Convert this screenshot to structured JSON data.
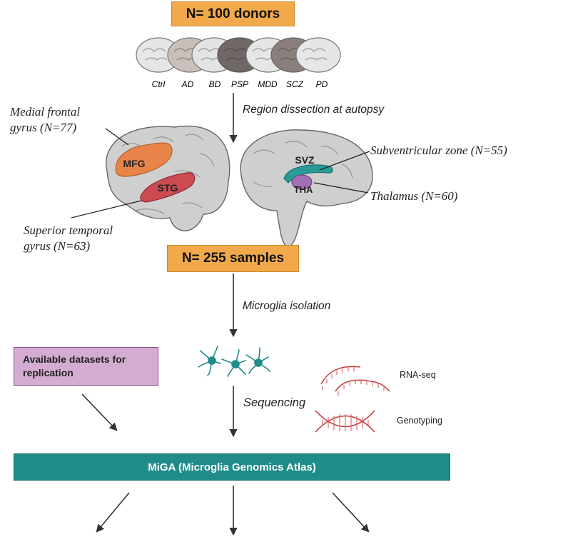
{
  "boxes": {
    "donors": "N= 100 donors",
    "samples": "N= 255 samples",
    "replication": "Available datasets for replication",
    "miga": "MiGA (Microglia Genomics Atlas)"
  },
  "donor_groups": [
    "Ctrl",
    "AD",
    "BD",
    "PSP",
    "MDD",
    "SCZ",
    "PD"
  ],
  "steps": {
    "dissection": "Region dissection at autopsy",
    "isolation": "Microglia isolation",
    "sequencing": "Sequencing"
  },
  "regions": {
    "mfg_abbr": "MFG",
    "stg_abbr": "STG",
    "svz_abbr": "SVZ",
    "tha_abbr": "THA",
    "mfg_line1": "Medial frontal",
    "mfg_line2": "gyrus (N=77)",
    "stg_line1": "Superior temporal",
    "stg_line2": "gyrus (N=63)",
    "svz_full": "Subventricular zone (N=55)",
    "tha_full": "Thalamus (N=60)"
  },
  "assays": {
    "rna": "RNA-seq",
    "geno": "Genotyping"
  },
  "colors": {
    "orange": "#f2a94b",
    "purple": "#d4acd2",
    "teal": "#1f8c8a",
    "mfg": "#e8844a",
    "stg": "#cc4a52",
    "svz": "#2a9a98",
    "tha": "#a36fb4",
    "dna": "#e06060"
  },
  "icons": [
    "brain-icon",
    "microglia-icon",
    "rna-strand-icon",
    "dna-helix-icon"
  ]
}
